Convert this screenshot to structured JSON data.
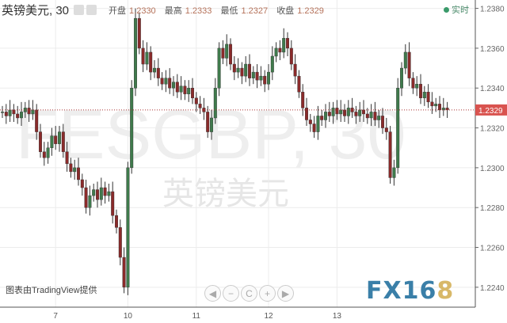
{
  "header": {
    "title": "英镑美元, 30",
    "open_label": "开盘",
    "open": "1.2330",
    "high_label": "最高",
    "high": "1.2333",
    "low_label": "最低",
    "low": "1.2327",
    "close_label": "收盘",
    "close": "1.2329",
    "live_label": "实时"
  },
  "watermark": {
    "symbol": "FESGBP, 30",
    "name": "英镑美元"
  },
  "credit": "图表由TradingView提供",
  "logo": {
    "main": "FX16",
    "accent": "8"
  },
  "nav_icons": [
    "arrow-left-icon",
    "zoom-out-icon",
    "reset-icon",
    "zoom-in-icon",
    "arrow-right-icon"
  ],
  "nav_glyphs": [
    "◀",
    "−",
    "C",
    "+",
    "▶"
  ],
  "colors": {
    "up": "#3f7a4c",
    "down": "#8a2a2a",
    "last_price": "#d9534f",
    "grid": "#ececec"
  },
  "chart_data": {
    "type": "candlestick",
    "ylim": [
      1.223,
      1.2385
    ],
    "yticks": [
      "1.2380",
      "1.2360",
      "1.2340",
      "1.2320",
      "1.2300",
      "1.2280",
      "1.2260",
      "1.2240"
    ],
    "xticks": [
      {
        "label": "7",
        "index": 14
      },
      {
        "label": "10",
        "index": 33
      },
      {
        "label": "11",
        "index": 51
      },
      {
        "label": "12",
        "index": 70
      },
      {
        "label": "13",
        "index": 88
      }
    ],
    "last_price": "1.2329",
    "grid": true,
    "closes": [
      1.2328,
      1.2326,
      1.2329,
      1.2327,
      1.2325,
      1.2328,
      1.233,
      1.2327,
      1.2329,
      1.2318,
      1.2308,
      1.2305,
      1.231,
      1.2316,
      1.2312,
      1.2318,
      1.2308,
      1.2302,
      1.2298,
      1.23,
      1.2294,
      1.229,
      1.228,
      1.2286,
      1.2289,
      1.2284,
      1.229,
      1.2286,
      1.2288,
      1.2276,
      1.227,
      1.2255,
      1.224,
      1.23,
      1.234,
      1.2375,
      1.236,
      1.2352,
      1.2358,
      1.2348,
      1.235,
      1.2345,
      1.2342,
      1.2345,
      1.234,
      1.2343,
      1.2338,
      1.2341,
      1.2337,
      1.234,
      1.2335,
      1.2332,
      1.233,
      1.2328,
      1.2318,
      1.2325,
      1.234,
      1.236,
      1.2355,
      1.2362,
      1.2352,
      1.2348,
      1.235,
      1.2346,
      1.2352,
      1.2345,
      1.2348,
      1.2344,
      1.2346,
      1.2342,
      1.2348,
      1.2356,
      1.236,
      1.2358,
      1.2365,
      1.236,
      1.2352,
      1.2346,
      1.2338,
      1.233,
      1.2324,
      1.2322,
      1.2318,
      1.2326,
      1.2324,
      1.2328,
      1.2326,
      1.233,
      1.2327,
      1.2329,
      1.2326,
      1.233,
      1.2328,
      1.2326,
      1.2329,
      1.2327,
      1.2325,
      1.2328,
      1.2324,
      1.2326,
      1.232,
      1.2318,
      1.2295,
      1.23,
      1.234,
      1.235,
      1.2358,
      1.2345,
      1.234,
      1.2342,
      1.2335,
      1.2338,
      1.2333,
      1.2331,
      1.2332,
      1.2329,
      1.233,
      1.2329
    ]
  }
}
